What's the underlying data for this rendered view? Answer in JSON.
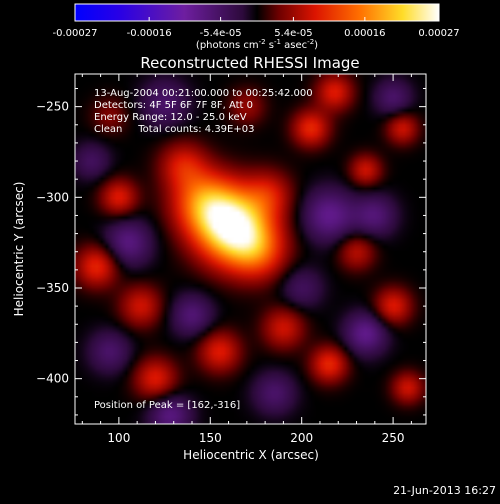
{
  "colorbar": {
    "tick_labels": [
      "-0.00027",
      "-0.00016",
      "-5.4e-05",
      "5.4e-05",
      "0.00016",
      "0.00027"
    ],
    "range": [
      -0.00027,
      0.00027
    ],
    "units_main": "(photons cm",
    "units_sup1": "-2",
    "units_mid": " s",
    "units_sup2": "-1",
    "units_end": " asec",
    "units_sup3": "-2",
    "units_close": ")"
  },
  "chart_data": {
    "type": "heatmap",
    "title": "Reconstructed RHESSI Image",
    "xlabel": "Heliocentric X (arcsec)",
    "ylabel": "Heliocentric Y (arcsec)",
    "xlim": [
      76,
      268
    ],
    "ylim": [
      -425,
      -232
    ],
    "x_ticks": [
      100,
      150,
      200,
      250
    ],
    "y_ticks": [
      -250,
      -300,
      -350,
      -400
    ],
    "info_lines": [
      "13-Aug-2004 00:21:00.000 to 00:25:42.000",
      "Detectors: 4F 5F 6F 7F 8F, Att 0",
      "Energy Range: 12.0 - 25.0 keV",
      "Clean     Total counts: 4.39E+03"
    ],
    "peak_label": "Position of Peak = [162,-316]",
    "peak": [
      162,
      -316
    ],
    "colormap": "flame",
    "sources": [
      {
        "x": 162,
        "y": -316,
        "value": 0.00027,
        "sigma": 14
      },
      {
        "x": 146,
        "y": -302,
        "value": 0.00013,
        "sigma": 12
      },
      {
        "x": 176,
        "y": -330,
        "value": 0.0001,
        "sigma": 11
      },
      {
        "x": 135,
        "y": -282,
        "value": 8e-05,
        "sigma": 9
      },
      {
        "x": 182,
        "y": -298,
        "value": 7e-05,
        "sigma": 9
      },
      {
        "x": 205,
        "y": -262,
        "value": 0.0001,
        "sigma": 7
      },
      {
        "x": 218,
        "y": -242,
        "value": 9e-05,
        "sigma": 7
      },
      {
        "x": 235,
        "y": -285,
        "value": 8e-05,
        "sigma": 6
      },
      {
        "x": 255,
        "y": -262,
        "value": 8e-05,
        "sigma": 6
      },
      {
        "x": 100,
        "y": -300,
        "value": 9e-05,
        "sigma": 7
      },
      {
        "x": 88,
        "y": -338,
        "value": 0.0001,
        "sigma": 8
      },
      {
        "x": 112,
        "y": -360,
        "value": 8e-05,
        "sigma": 8
      },
      {
        "x": 120,
        "y": -400,
        "value": 9e-05,
        "sigma": 8
      },
      {
        "x": 155,
        "y": -385,
        "value": 9e-05,
        "sigma": 8
      },
      {
        "x": 190,
        "y": -372,
        "value": 8e-05,
        "sigma": 8
      },
      {
        "x": 215,
        "y": -392,
        "value": 0.0001,
        "sigma": 7
      },
      {
        "x": 250,
        "y": -360,
        "value": 9e-05,
        "sigma": 7
      },
      {
        "x": 230,
        "y": -330,
        "value": 7e-05,
        "sigma": 7
      },
      {
        "x": 258,
        "y": -405,
        "value": 8e-05,
        "sigma": 6
      },
      {
        "x": 170,
        "y": -250,
        "value": 5e-05,
        "sigma": 7
      },
      {
        "x": 95,
        "y": -255,
        "value": 4e-05,
        "sigma": 7
      },
      {
        "x": 125,
        "y": -248,
        "value": -6e-05,
        "sigma": 9
      },
      {
        "x": 105,
        "y": -325,
        "value": -8e-05,
        "sigma": 9
      },
      {
        "x": 215,
        "y": -310,
        "value": -9e-05,
        "sigma": 10
      },
      {
        "x": 240,
        "y": -310,
        "value": -7e-05,
        "sigma": 8
      },
      {
        "x": 200,
        "y": -350,
        "value": -5e-05,
        "sigma": 8
      },
      {
        "x": 140,
        "y": -365,
        "value": -7e-05,
        "sigma": 8
      },
      {
        "x": 128,
        "y": -420,
        "value": -8e-05,
        "sigma": 8
      },
      {
        "x": 235,
        "y": -375,
        "value": -9e-05,
        "sigma": 8
      },
      {
        "x": 185,
        "y": -408,
        "value": -6e-05,
        "sigma": 8
      },
      {
        "x": 250,
        "y": -245,
        "value": -6e-05,
        "sigma": 7
      },
      {
        "x": 85,
        "y": -280,
        "value": -5e-05,
        "sigma": 7
      },
      {
        "x": 95,
        "y": -385,
        "value": -6e-05,
        "sigma": 8
      }
    ]
  },
  "footer": {
    "timestamp": "21-Jun-2013 16:27"
  }
}
